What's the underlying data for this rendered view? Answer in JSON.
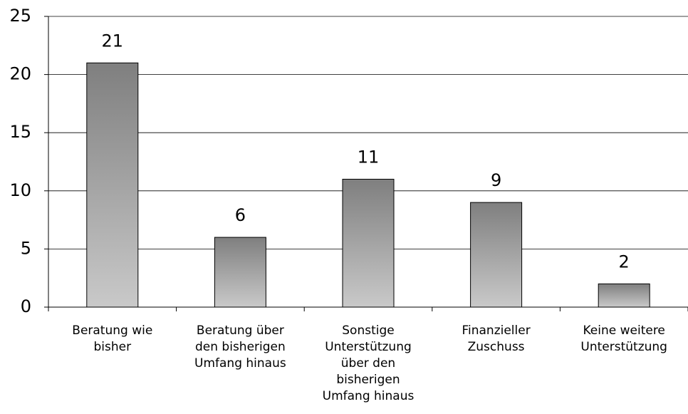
{
  "chart_data": {
    "type": "bar",
    "categories": [
      "Beratung wie bisher",
      "Beratung über den bisherigen Umfang hinaus",
      "Sonstige Unterstützung über den bisherigen Umfang hinaus",
      "Finanzieller Zuschuss",
      "Keine weitere Unterstützung"
    ],
    "values": [
      21,
      6,
      11,
      9,
      2
    ],
    "color": "#8a8a8a",
    "ylim": [
      0,
      25
    ],
    "yticks": [
      0,
      5,
      10,
      15,
      20,
      25
    ],
    "grid": true
  }
}
